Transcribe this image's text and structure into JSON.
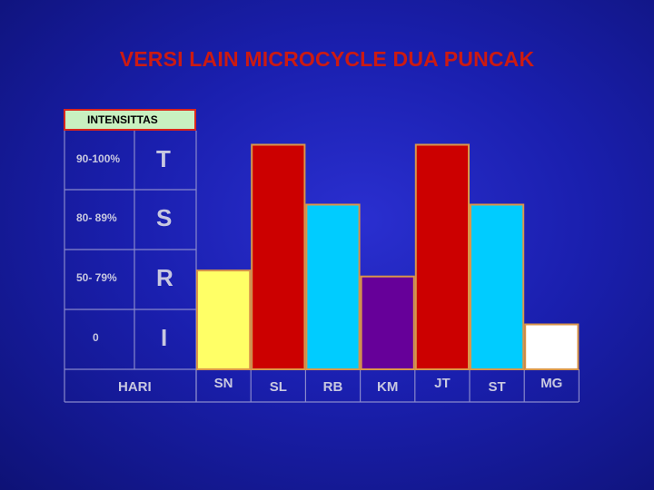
{
  "title": "VERSI LAIN MICROCYCLE DUA PUNCAK",
  "chart_data": {
    "type": "bar",
    "intensity_header": "INTENSITTAS",
    "y_levels": [
      {
        "range": "90-100%",
        "letter": "T"
      },
      {
        "range": "80- 89%",
        "letter": "S"
      },
      {
        "range": "50- 79%",
        "letter": "R"
      },
      {
        "range": "0",
        "letter": "I"
      }
    ],
    "xlabel": "HARI",
    "categories": [
      "SN",
      "SL",
      "RB",
      "KM",
      "JT",
      "ST",
      "MG"
    ],
    "values": [
      1.65,
      3.75,
      2.75,
      1.55,
      3.75,
      2.75,
      0.75
    ],
    "ylim": [
      0,
      4
    ],
    "colors": [
      "#ffff66",
      "#cc0000",
      "#00ccff",
      "#660099",
      "#cc0000",
      "#00ccff",
      "#ffffff"
    ],
    "bar_border_color": "#d9964a",
    "grid_color": "#8888cc"
  }
}
